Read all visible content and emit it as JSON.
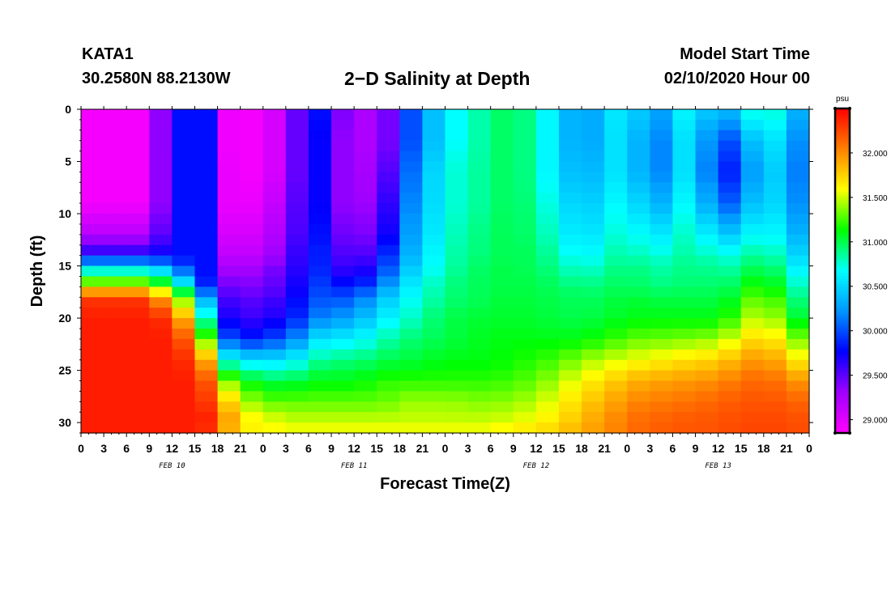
{
  "header": {
    "station": "KATA1",
    "coords": "30.2580N 88.2130W",
    "title": "2−D Salinity at Depth",
    "model_start_label": "Model Start Time",
    "model_start_value": "02/10/2020 Hour 00"
  },
  "chart_data": {
    "type": "heatmap",
    "xlabel": "Forecast Time(Z)",
    "ylabel": "Depth (ft)",
    "x_hours": [
      0,
      96
    ],
    "x_tick_labels": [
      "0",
      "3",
      "6",
      "9",
      "12",
      "15",
      "18",
      "21",
      "0",
      "3",
      "6",
      "9",
      "12",
      "15",
      "18",
      "21",
      "0",
      "3",
      "6",
      "9",
      "12",
      "15",
      "18",
      "21",
      "0",
      "3",
      "6",
      "9",
      "12",
      "15",
      "18",
      "21",
      "0"
    ],
    "date_labels": [
      {
        "hour": 12,
        "label": "FEB 10"
      },
      {
        "hour": 36,
        "label": "FEB 11"
      },
      {
        "hour": 60,
        "label": "FEB 12"
      },
      {
        "hour": 84,
        "label": "FEB 13"
      }
    ],
    "y_depth_ft": [
      0,
      31
    ],
    "y_tick_labels": [
      "0",
      "5",
      "10",
      "15",
      "20",
      "25",
      "30"
    ],
    "colorbar": {
      "unit": "psu",
      "range": [
        28.85,
        32.5
      ],
      "tick_labels": [
        "29.000",
        "29.500",
        "30.000",
        "30.500",
        "31.000",
        "31.500",
        "32.000"
      ],
      "colors": [
        "#ff00ff",
        "#a000ff",
        "#0000ff",
        "#0096ff",
        "#00ffff",
        "#00ff00",
        "#ffff00",
        "#ff8000",
        "#ff0000"
      ]
    },
    "anchors_hours": [
      0,
      3,
      9,
      12,
      15,
      16.5,
      18,
      21,
      24,
      28,
      30,
      33,
      36,
      40,
      42,
      48,
      54,
      57,
      60,
      63,
      66,
      70,
      72,
      75,
      80,
      84,
      87,
      90,
      93,
      96
    ],
    "anchors_depth_ft": [
      0,
      3,
      6,
      9,
      12,
      14,
      15,
      16,
      17,
      18,
      20,
      22,
      24,
      26,
      28,
      30,
      31
    ],
    "salinity_psu": [
      [
        28.9,
        28.9,
        28.9,
        28.9,
        29.2,
        29.7,
        30.5,
        31.0,
        31.6,
        32.3,
        32.4,
        32.4,
        32.4,
        32.4,
        32.4,
        32.4,
        32.4
      ],
      [
        28.9,
        28.9,
        28.9,
        28.9,
        29.2,
        29.7,
        30.5,
        31.0,
        31.6,
        32.3,
        32.4,
        32.4,
        32.4,
        32.4,
        32.4,
        32.4,
        32.4
      ],
      [
        28.9,
        28.9,
        28.9,
        28.9,
        29.2,
        29.7,
        30.5,
        31.0,
        31.6,
        32.3,
        32.4,
        32.4,
        32.4,
        32.4,
        32.4,
        32.4,
        32.4
      ],
      [
        29.8,
        29.8,
        29.8,
        29.8,
        29.8,
        29.8,
        30.1,
        30.6,
        31.0,
        31.6,
        32.3,
        32.4,
        32.4,
        32.4,
        32.4,
        32.4,
        32.4
      ],
      [
        29.8,
        29.8,
        29.8,
        29.8,
        29.8,
        29.8,
        29.8,
        30.0,
        30.5,
        31.0,
        31.5,
        32.0,
        32.3,
        32.4,
        32.4,
        32.4,
        32.4
      ],
      [
        29.8,
        29.8,
        29.8,
        29.8,
        29.8,
        29.8,
        29.8,
        29.8,
        29.9,
        30.3,
        30.8,
        31.3,
        31.9,
        32.2,
        32.3,
        32.4,
        32.3
      ],
      [
        28.95,
        28.95,
        29.0,
        29.0,
        29.1,
        29.2,
        29.3,
        29.4,
        29.5,
        29.6,
        29.8,
        30.2,
        30.8,
        31.5,
        32.0,
        32.2,
        32.0
      ],
      [
        28.9,
        28.9,
        28.9,
        28.9,
        29.0,
        29.1,
        29.2,
        29.3,
        29.4,
        29.5,
        29.6,
        29.8,
        30.6,
        31.2,
        31.5,
        31.7,
        31.6
      ],
      [
        28.9,
        28.9,
        28.9,
        29.0,
        29.1,
        29.2,
        29.3,
        29.4,
        29.4,
        29.5,
        29.6,
        29.9,
        30.5,
        31.0,
        31.3,
        31.6,
        31.6
      ],
      [
        29.3,
        29.3,
        29.3,
        29.35,
        29.4,
        29.5,
        29.5,
        29.6,
        29.6,
        29.7,
        29.8,
        30.1,
        30.6,
        31.0,
        31.3,
        31.5,
        31.6
      ],
      [
        30.0,
        30.0,
        30.0,
        30.0,
        30.0,
        30.0,
        30.0,
        30.0,
        30.0,
        30.0,
        30.1,
        30.5,
        30.8,
        31.1,
        31.3,
        31.5,
        31.6
      ],
      [
        29.6,
        29.5,
        29.5,
        29.5,
        29.6,
        29.7,
        29.7,
        29.8,
        29.9,
        30.0,
        30.2,
        30.6,
        30.9,
        31.1,
        31.3,
        31.5,
        31.6
      ],
      [
        29.2,
        29.2,
        29.2,
        29.2,
        29.3,
        29.4,
        29.5,
        29.6,
        29.8,
        30.0,
        30.3,
        30.6,
        30.9,
        31.1,
        31.3,
        31.5,
        31.6
      ],
      [
        29.3,
        29.3,
        29.4,
        29.5,
        29.6,
        29.8,
        29.9,
        30.0,
        30.2,
        30.4,
        30.6,
        30.8,
        31.0,
        31.2,
        31.3,
        31.5,
        31.6
      ],
      [
        29.8,
        29.8,
        29.9,
        30.0,
        30.1,
        30.2,
        30.3,
        30.4,
        30.5,
        30.6,
        30.7,
        30.9,
        31.0,
        31.2,
        31.4,
        31.5,
        31.6
      ],
      [
        30.6,
        30.6,
        30.7,
        30.7,
        30.75,
        30.8,
        30.8,
        30.85,
        30.9,
        30.9,
        31.0,
        31.0,
        31.1,
        31.2,
        31.4,
        31.5,
        31.6
      ],
      [
        30.9,
        30.9,
        30.9,
        30.9,
        30.95,
        30.95,
        31.0,
        31.0,
        31.0,
        31.0,
        31.05,
        31.1,
        31.1,
        31.2,
        31.35,
        31.5,
        31.6
      ],
      [
        31.0,
        31.0,
        31.0,
        31.0,
        31.0,
        31.0,
        31.0,
        31.0,
        31.0,
        31.05,
        31.05,
        31.1,
        31.15,
        31.25,
        31.4,
        31.55,
        31.7
      ],
      [
        30.8,
        30.8,
        30.8,
        30.85,
        30.9,
        30.95,
        30.95,
        31.0,
        31.0,
        31.0,
        31.05,
        31.1,
        31.2,
        31.3,
        31.45,
        31.6,
        31.7
      ],
      [
        30.5,
        30.5,
        30.5,
        30.6,
        30.7,
        30.8,
        30.85,
        30.9,
        30.95,
        31.0,
        31.0,
        31.1,
        31.25,
        31.45,
        31.6,
        31.7,
        31.8
      ],
      [
        30.2,
        30.2,
        30.3,
        30.4,
        30.5,
        30.6,
        30.7,
        30.8,
        30.9,
        30.95,
        31.0,
        31.1,
        31.4,
        31.6,
        31.75,
        31.85,
        31.9
      ],
      [
        30.5,
        30.5,
        30.5,
        30.6,
        30.7,
        30.8,
        30.85,
        30.9,
        30.95,
        31.0,
        31.05,
        31.2,
        31.5,
        31.75,
        31.9,
        32.0,
        32.0
      ],
      [
        30.8,
        30.7,
        30.7,
        30.8,
        30.85,
        30.9,
        30.95,
        31.0,
        31.0,
        31.05,
        31.1,
        31.3,
        31.55,
        31.85,
        32.0,
        32.1,
        32.1
      ],
      [
        30.1,
        30.0,
        30.0,
        30.2,
        30.5,
        30.7,
        30.8,
        30.85,
        30.9,
        31.0,
        31.1,
        31.3,
        31.6,
        31.9,
        32.05,
        32.15,
        32.15
      ],
      [
        30.7,
        30.6,
        30.6,
        30.7,
        30.8,
        30.85,
        30.9,
        30.9,
        30.95,
        31.0,
        31.1,
        31.35,
        31.7,
        31.95,
        32.1,
        32.2,
        32.2
      ],
      [
        30.3,
        30.0,
        29.9,
        30.1,
        30.5,
        30.75,
        30.85,
        30.9,
        30.95,
        31.0,
        31.1,
        31.4,
        31.75,
        32.0,
        32.15,
        32.2,
        32.2
      ],
      [
        30.5,
        30.0,
        29.8,
        30.0,
        30.4,
        30.7,
        30.8,
        30.9,
        31.0,
        31.1,
        31.3,
        31.6,
        31.9,
        32.1,
        32.2,
        32.25,
        32.25
      ],
      [
        31.0,
        30.8,
        30.7,
        30.8,
        30.9,
        31.0,
        31.1,
        31.2,
        31.3,
        31.45,
        31.6,
        31.8,
        32.0,
        32.15,
        32.2,
        32.25,
        32.25
      ],
      [
        30.5,
        30.3,
        30.2,
        30.2,
        30.4,
        30.6,
        30.7,
        30.8,
        30.9,
        31.0,
        31.2,
        31.5,
        31.8,
        32.05,
        32.2,
        32.25,
        32.25
      ],
      [
        30.2,
        30.1,
        30.1,
        30.2,
        30.3,
        30.4,
        30.5,
        30.6,
        30.7,
        30.8,
        30.9,
        31.2,
        31.5,
        31.9,
        32.1,
        32.2,
        32.2
      ]
    ]
  }
}
